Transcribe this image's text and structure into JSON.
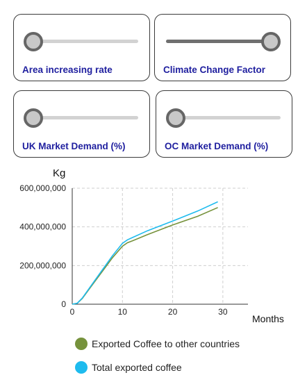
{
  "controls": [
    {
      "label": "Area increasing rate",
      "value": 0.0
    },
    {
      "label": "Climate Change Factor",
      "value": 1.0
    },
    {
      "label": "UK Market Demand (%)",
      "value": 0.0
    },
    {
      "label": "OC Market Demand (%)",
      "value": 0.0
    }
  ],
  "chart_data": {
    "type": "line",
    "title": "",
    "ylabel": "Kg",
    "xlabel": "Months",
    "xlim": [
      0,
      35
    ],
    "ylim": [
      0,
      600000000
    ],
    "x_ticks": [
      0,
      10,
      20,
      30
    ],
    "y_ticks": [
      0,
      200000000,
      400000000,
      600000000
    ],
    "y_tick_labels": [
      "0",
      "200,000,000",
      "400,000,000",
      "600,000,000"
    ],
    "grid": true,
    "legend": "bottom",
    "series": [
      {
        "name": "Exported Coffee to other countries",
        "color": "#76923c",
        "x": [
          0,
          1,
          2,
          4,
          6,
          8,
          10,
          11,
          12,
          15,
          20,
          25,
          29
        ],
        "y": [
          0,
          5000000,
          30000000,
          100000000,
          170000000,
          240000000,
          300000000,
          318000000,
          328000000,
          360000000,
          410000000,
          455000000,
          500000000
        ]
      },
      {
        "name": "Total exported coffee",
        "color": "#1ebbee",
        "x": [
          0,
          1,
          2,
          4,
          6,
          8,
          10,
          11,
          12,
          15,
          20,
          25,
          29
        ],
        "y": [
          0,
          5000000,
          32000000,
          105000000,
          178000000,
          250000000,
          315000000,
          333000000,
          345000000,
          380000000,
          430000000,
          482000000,
          530000000
        ]
      }
    ]
  }
}
